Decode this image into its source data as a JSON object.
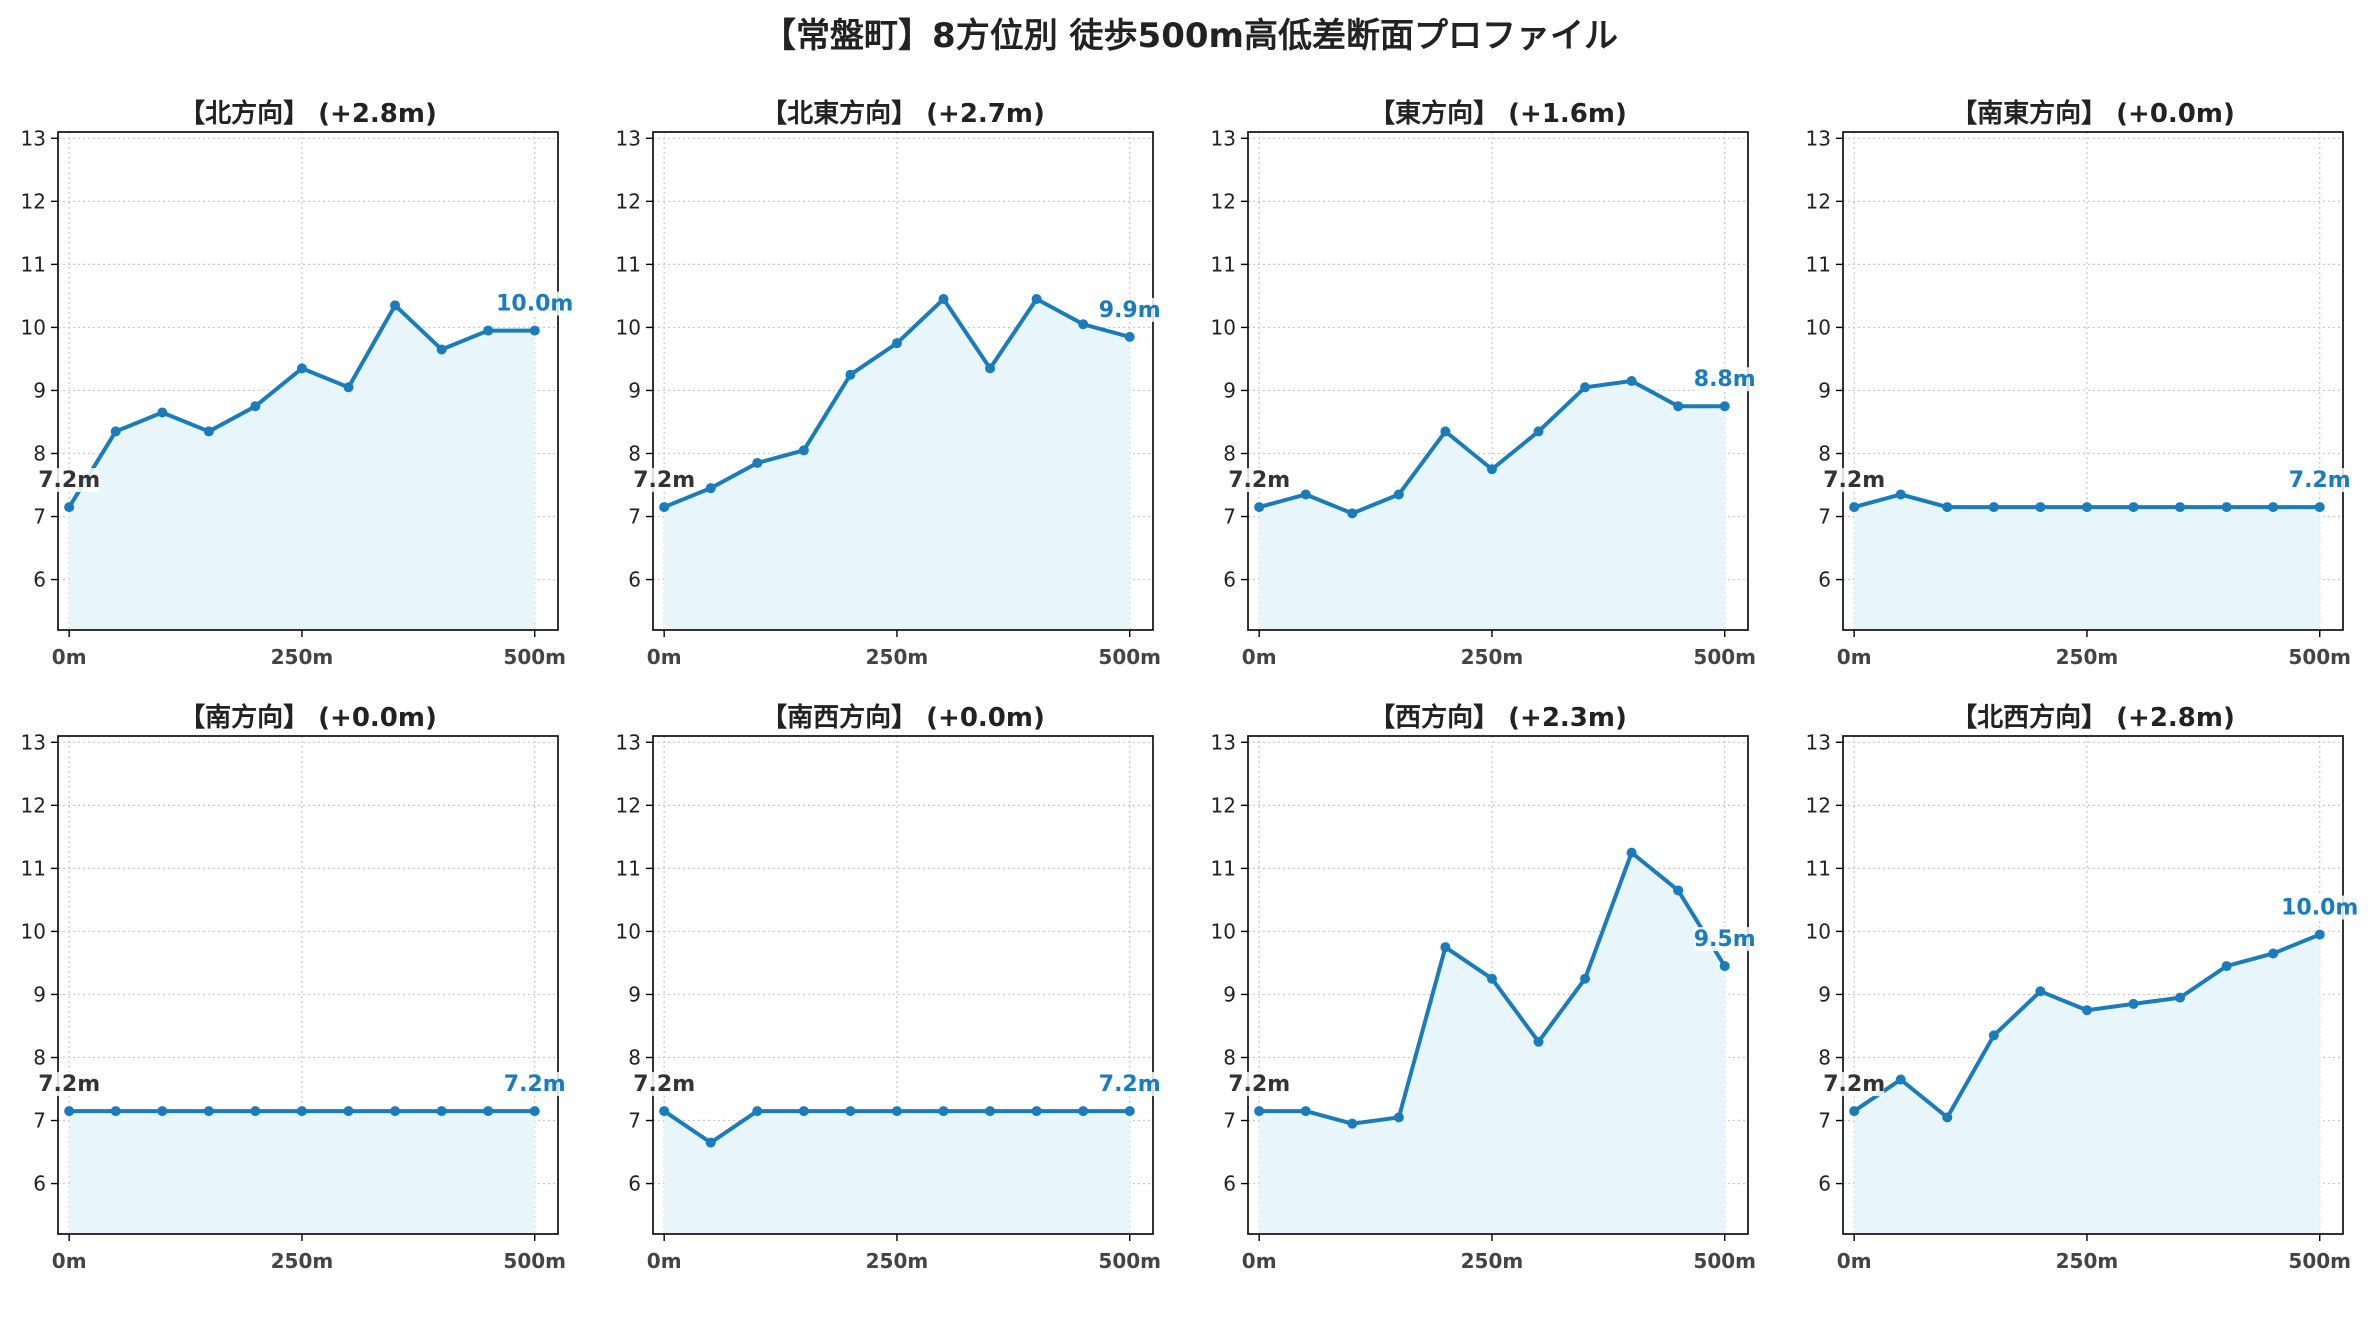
{
  "title": "【常盤町】8方位別 徒歩500m高低差断面プロファイル",
  "colors": {
    "line": "#1a7bbd",
    "fill": "#e8f6fb",
    "grid": "#c8c8c8",
    "start_label": "#333333",
    "end_label": "#1a7bbd"
  },
  "chart_data": [
    {
      "type": "line",
      "title": "【北方向】 (+2.8m)",
      "x": [
        0,
        50,
        100,
        150,
        200,
        250,
        300,
        350,
        400,
        450,
        500
      ],
      "values": [
        7.15,
        8.35,
        8.65,
        8.35,
        8.75,
        9.35,
        9.05,
        10.35,
        9.65,
        9.95,
        9.95
      ],
      "start_label": "7.2m",
      "end_label": "10.0m",
      "xticks": [
        "0m",
        "250m",
        "500m"
      ],
      "yticks": [
        6,
        7,
        8,
        9,
        10,
        11,
        12,
        13
      ],
      "ylim": [
        5.2,
        13.1
      ],
      "xlim": [
        -12,
        525
      ],
      "grid": true
    },
    {
      "type": "line",
      "title": "【北東方向】 (+2.7m)",
      "x": [
        0,
        50,
        100,
        150,
        200,
        250,
        300,
        350,
        400,
        450,
        500
      ],
      "values": [
        7.15,
        7.45,
        7.85,
        8.05,
        9.25,
        9.75,
        10.45,
        9.35,
        10.45,
        10.05,
        9.85
      ],
      "start_label": "7.2m",
      "end_label": "9.9m",
      "xticks": [
        "0m",
        "250m",
        "500m"
      ],
      "yticks": [
        6,
        7,
        8,
        9,
        10,
        11,
        12,
        13
      ],
      "ylim": [
        5.2,
        13.1
      ],
      "xlim": [
        -12,
        525
      ],
      "grid": true
    },
    {
      "type": "line",
      "title": "【東方向】 (+1.6m)",
      "x": [
        0,
        50,
        100,
        150,
        200,
        250,
        300,
        350,
        400,
        450,
        500
      ],
      "values": [
        7.15,
        7.35,
        7.05,
        7.35,
        8.35,
        7.75,
        8.35,
        9.05,
        9.15,
        8.75,
        8.75
      ],
      "start_label": "7.2m",
      "end_label": "8.8m",
      "xticks": [
        "0m",
        "250m",
        "500m"
      ],
      "yticks": [
        6,
        7,
        8,
        9,
        10,
        11,
        12,
        13
      ],
      "ylim": [
        5.2,
        13.1
      ],
      "xlim": [
        -12,
        525
      ],
      "grid": true
    },
    {
      "type": "line",
      "title": "【南東方向】 (+0.0m)",
      "x": [
        0,
        50,
        100,
        150,
        200,
        250,
        300,
        350,
        400,
        450,
        500
      ],
      "values": [
        7.15,
        7.35,
        7.15,
        7.15,
        7.15,
        7.15,
        7.15,
        7.15,
        7.15,
        7.15,
        7.15
      ],
      "start_label": "7.2m",
      "end_label": "7.2m",
      "xticks": [
        "0m",
        "250m",
        "500m"
      ],
      "yticks": [
        6,
        7,
        8,
        9,
        10,
        11,
        12,
        13
      ],
      "ylim": [
        5.2,
        13.1
      ],
      "xlim": [
        -12,
        525
      ],
      "grid": true
    },
    {
      "type": "line",
      "title": "【南方向】 (+0.0m)",
      "x": [
        0,
        50,
        100,
        150,
        200,
        250,
        300,
        350,
        400,
        450,
        500
      ],
      "values": [
        7.15,
        7.15,
        7.15,
        7.15,
        7.15,
        7.15,
        7.15,
        7.15,
        7.15,
        7.15,
        7.15
      ],
      "start_label": "7.2m",
      "end_label": "7.2m",
      "xticks": [
        "0m",
        "250m",
        "500m"
      ],
      "yticks": [
        6,
        7,
        8,
        9,
        10,
        11,
        12,
        13
      ],
      "ylim": [
        5.2,
        13.1
      ],
      "xlim": [
        -12,
        525
      ],
      "grid": true
    },
    {
      "type": "line",
      "title": "【南西方向】 (+0.0m)",
      "x": [
        0,
        50,
        100,
        150,
        200,
        250,
        300,
        350,
        400,
        450,
        500
      ],
      "values": [
        7.15,
        6.65,
        7.15,
        7.15,
        7.15,
        7.15,
        7.15,
        7.15,
        7.15,
        7.15,
        7.15
      ],
      "start_label": "7.2m",
      "end_label": "7.2m",
      "xticks": [
        "0m",
        "250m",
        "500m"
      ],
      "yticks": [
        6,
        7,
        8,
        9,
        10,
        11,
        12,
        13
      ],
      "ylim": [
        5.2,
        13.1
      ],
      "xlim": [
        -12,
        525
      ],
      "grid": true
    },
    {
      "type": "line",
      "title": "【西方向】 (+2.3m)",
      "x": [
        0,
        50,
        100,
        150,
        200,
        250,
        300,
        350,
        400,
        450,
        500
      ],
      "values": [
        7.15,
        7.15,
        6.95,
        7.05,
        9.75,
        9.25,
        8.25,
        9.25,
        11.25,
        10.65,
        9.45
      ],
      "start_label": "7.2m",
      "end_label": "9.5m",
      "xticks": [
        "0m",
        "250m",
        "500m"
      ],
      "yticks": [
        6,
        7,
        8,
        9,
        10,
        11,
        12,
        13
      ],
      "ylim": [
        5.2,
        13.1
      ],
      "xlim": [
        -12,
        525
      ],
      "grid": true
    },
    {
      "type": "line",
      "title": "【北西方向】 (+2.8m)",
      "x": [
        0,
        50,
        100,
        150,
        200,
        250,
        300,
        350,
        400,
        450,
        500
      ],
      "values": [
        7.15,
        7.65,
        7.05,
        8.35,
        9.05,
        8.75,
        8.85,
        8.95,
        9.45,
        9.65,
        9.95
      ],
      "start_label": "7.2m",
      "end_label": "10.0m",
      "xticks": [
        "0m",
        "250m",
        "500m"
      ],
      "yticks": [
        6,
        7,
        8,
        9,
        10,
        11,
        12,
        13
      ],
      "ylim": [
        5.2,
        13.1
      ],
      "xlim": [
        -12,
        525
      ],
      "grid": true
    }
  ]
}
